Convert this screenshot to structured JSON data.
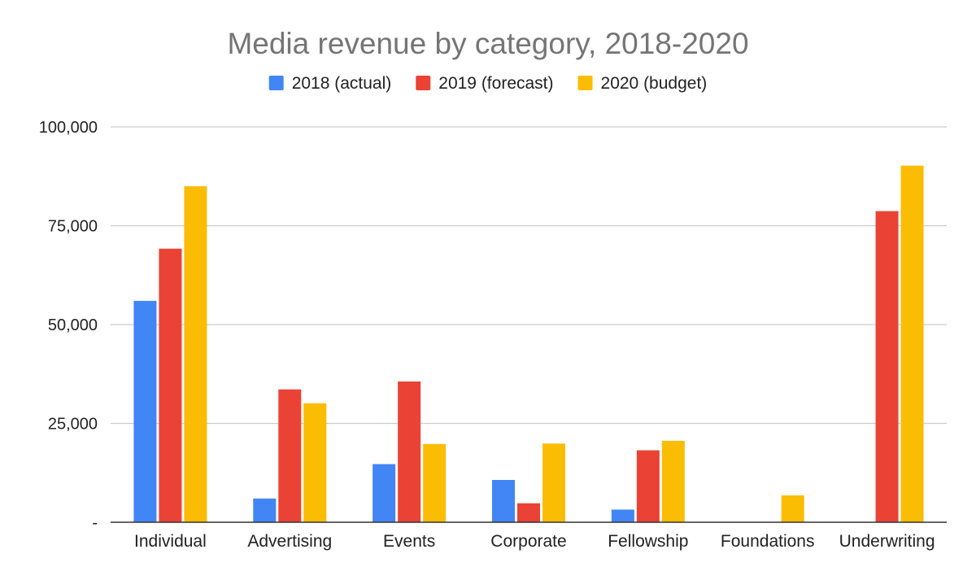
{
  "chart_data": {
    "type": "bar",
    "title": "Media revenue by category, 2018-2020",
    "xlabel": "",
    "ylabel": "",
    "categories": [
      "Individual",
      "Advertising",
      "Events",
      "Corporate",
      "Fellowship",
      "Foundations",
      "Underwriting"
    ],
    "series": [
      {
        "name": "2018 (actual)",
        "color": "#4285F4",
        "values": [
          56000,
          6000,
          14700,
          10700,
          3200,
          0,
          0
        ]
      },
      {
        "name": "2019 (forecast)",
        "color": "#EA4335",
        "values": [
          69200,
          33600,
          35600,
          4800,
          18200,
          0,
          78700
        ]
      },
      {
        "name": "2020 (budget)",
        "color": "#FBBC04",
        "values": [
          85000,
          30100,
          19800,
          19900,
          20600,
          6800,
          90200
        ]
      }
    ],
    "yticks": [
      {
        "value": 0,
        "label": "-"
      },
      {
        "value": 25000,
        "label": "25,000"
      },
      {
        "value": 50000,
        "label": "50,000"
      },
      {
        "value": 75000,
        "label": "75,000"
      },
      {
        "value": 100000,
        "label": "100,000"
      }
    ],
    "ylim": [
      0,
      100000
    ],
    "grid": true,
    "legend_position": "top"
  }
}
